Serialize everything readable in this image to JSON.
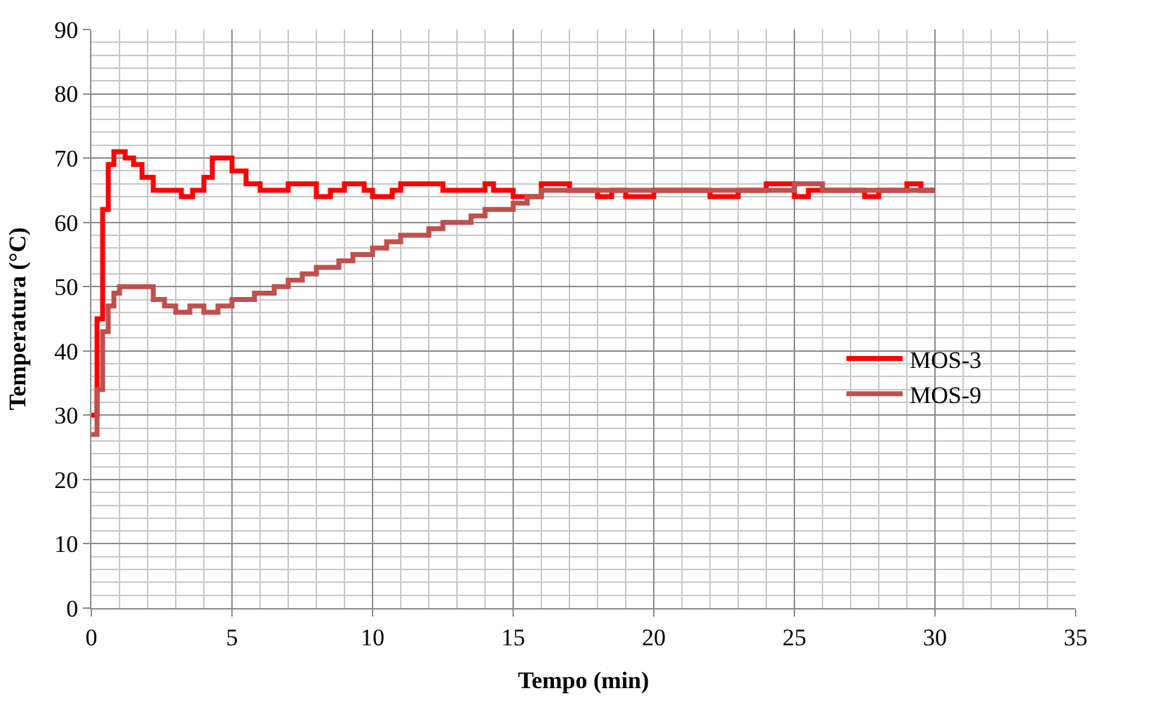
{
  "chart_data": {
    "type": "step",
    "xlabel": "Tempo (min)",
    "ylabel": "Temperatura (°C)",
    "xlim": [
      0,
      35
    ],
    "xticks": [
      0,
      5,
      10,
      15,
      20,
      25,
      30,
      35
    ],
    "ylim": [
      0,
      90
    ],
    "yticks": [
      0,
      10,
      20,
      30,
      40,
      50,
      60,
      70,
      80,
      90
    ],
    "grid": true,
    "legend": "right",
    "marker": "none",
    "line_style": "solid",
    "series": [
      {
        "name": "MOS-3",
        "color": "#ff0000",
        "x": [
          0,
          0.2,
          0.4,
          0.6,
          0.8,
          1.0,
          1.2,
          1.5,
          1.8,
          2.2,
          3,
          3.2,
          3.6,
          4,
          4.3,
          4.7,
          5,
          5.5,
          6,
          7,
          7.6,
          8,
          8.5,
          9,
          9.7,
          10,
          10.7,
          11,
          12.5,
          14,
          14.3,
          15,
          16,
          17,
          18,
          18.5,
          19,
          20,
          22,
          23,
          24,
          25,
          25.5,
          27.5,
          28,
          29,
          29.5,
          30
        ],
        "values": [
          30,
          45,
          62,
          69,
          71,
          71,
          70,
          69,
          67,
          65,
          65,
          64,
          65,
          67,
          70,
          70,
          68,
          66,
          65,
          66,
          66,
          64,
          65,
          66,
          65,
          64,
          65,
          66,
          65,
          66,
          65,
          64,
          66,
          65,
          64,
          65,
          64,
          65,
          64,
          65,
          66,
          64,
          65,
          64,
          65,
          66,
          65,
          65
        ]
      },
      {
        "name": "MOS-9",
        "color": "#c0504d",
        "x": [
          0,
          0.2,
          0.4,
          0.6,
          0.8,
          1,
          1.7,
          2.2,
          2.6,
          3,
          3.5,
          4,
          4.5,
          5,
          5.8,
          6.5,
          7,
          7.5,
          8,
          8.8,
          9.3,
          10,
          10.5,
          11,
          12,
          12.5,
          13.5,
          14,
          15,
          15.5,
          16,
          24,
          25,
          26,
          30
        ],
        "values": [
          27,
          34,
          43,
          47,
          49,
          50,
          50,
          48,
          47,
          46,
          47,
          46,
          47,
          48,
          49,
          50,
          51,
          52,
          53,
          54,
          55,
          56,
          57,
          58,
          59,
          60,
          61,
          62,
          63,
          64,
          65,
          65,
          66,
          65,
          65
        ]
      }
    ]
  }
}
